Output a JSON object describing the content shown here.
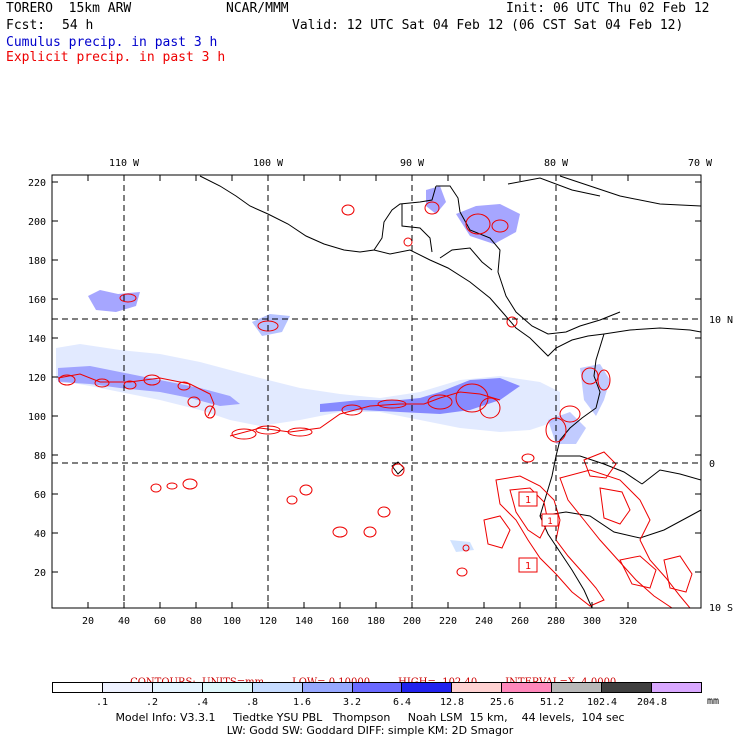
{
  "header": {
    "model": "TORERO  15km ARW",
    "agency": "NCAR/MMM",
    "init": "Init: 06 UTC Thu 02 Feb 12",
    "fcst_label": "Fcst:",
    "fcst_value": "54 h",
    "valid": "Valid: 12 UTC Sat 04 Feb 12 (06 CST Sat 04 Feb 12)"
  },
  "legend": {
    "cumulus": "Cumulus precip. in past 3 h",
    "explicit": "Explicit precip. in past 3 h"
  },
  "map": {
    "top_lon_labels": [
      "110 W",
      "100 W",
      "90 W",
      "80 W",
      "70 W"
    ],
    "right_lat_labels": [
      "10 N",
      "0",
      "10 S"
    ],
    "y_ticks": [
      "220",
      "200",
      "180",
      "160",
      "140",
      "120",
      "100",
      "80",
      "60",
      "40",
      "20"
    ],
    "x_ticks": [
      "20",
      "40",
      "60",
      "80",
      "100",
      "120",
      "140",
      "160",
      "180",
      "200",
      "220",
      "240",
      "260",
      "280",
      "300",
      "320"
    ],
    "contour_label_1": "1",
    "contour_label_2": "1",
    "contour_label_3": "1"
  },
  "contours": {
    "units": "CONTOURS:  UNITS=mm",
    "low": "LOW= 0.10000",
    "high": "HIGH=  102.40",
    "interval": "INTERVAL=X  4.0000"
  },
  "colorbar": {
    "colors": [
      "#ffffff",
      "#eef2ff",
      "#e6f4ff",
      "#dff7fb",
      "#c6dcff",
      "#97a8ff",
      "#6a6aff",
      "#2222ee",
      "#ffd2d2",
      "#ff88bb",
      "#b8b8b8",
      "#404040",
      "#d9a8ff"
    ],
    "labels": [
      ".1",
      ".2",
      ".4",
      ".8",
      "1.6",
      "3.2",
      "6.4",
      "12.8",
      "25.6",
      "51.2",
      "102.4",
      "204.8"
    ],
    "unit": "mm"
  },
  "model_info": {
    "line1": "Model Info: V3.3.1     Tiedtke YSU PBL   Thompson     Noah LSM  15 km,    44 levels,  104 sec",
    "line2": "LW: Godd SW: Goddard DIFF: simple KM: 2D Smagor"
  }
}
